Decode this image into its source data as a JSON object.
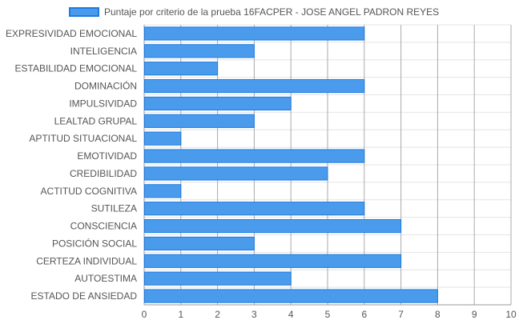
{
  "chart_data": {
    "type": "bar",
    "orientation": "horizontal",
    "legend": {
      "label": "Puntaje por criterio de la prueba 16FACPER - JOSE ANGEL PADRON REYES",
      "position": "top"
    },
    "categories": [
      "EXPRESIVIDAD EMOCIONAL",
      "INTELIGENCIA",
      "ESTABILIDAD EMOCIONAL",
      "DOMINACIÓN",
      "IMPULSIVIDAD",
      "LEALTAD GRUPAL",
      "APTITUD SITUACIONAL",
      "EMOTIVIDAD",
      "CREDIBILIDAD",
      "ACTITUD COGNITIVA",
      "SUTILEZA",
      "CONSCIENCIA",
      "POSICIÓN SOCIAL",
      "CERTEZA INDIVIDUAL",
      "AUTOESTIMA",
      "ESTADO DE ANSIEDAD"
    ],
    "values": [
      6,
      3,
      2,
      6,
      4,
      3,
      1,
      6,
      5,
      1,
      6,
      7,
      3,
      7,
      4,
      8
    ],
    "xlim": [
      0,
      10
    ],
    "xticks": [
      "0",
      "1",
      "2",
      "3",
      "4",
      "5",
      "6",
      "7",
      "8",
      "9",
      "10"
    ],
    "grid": true,
    "colors": {
      "bar_fill": "#4a9bec",
      "bar_border": "#1e7be0",
      "grid": "#e4e4e4",
      "axis": "#9a9a9a"
    }
  }
}
